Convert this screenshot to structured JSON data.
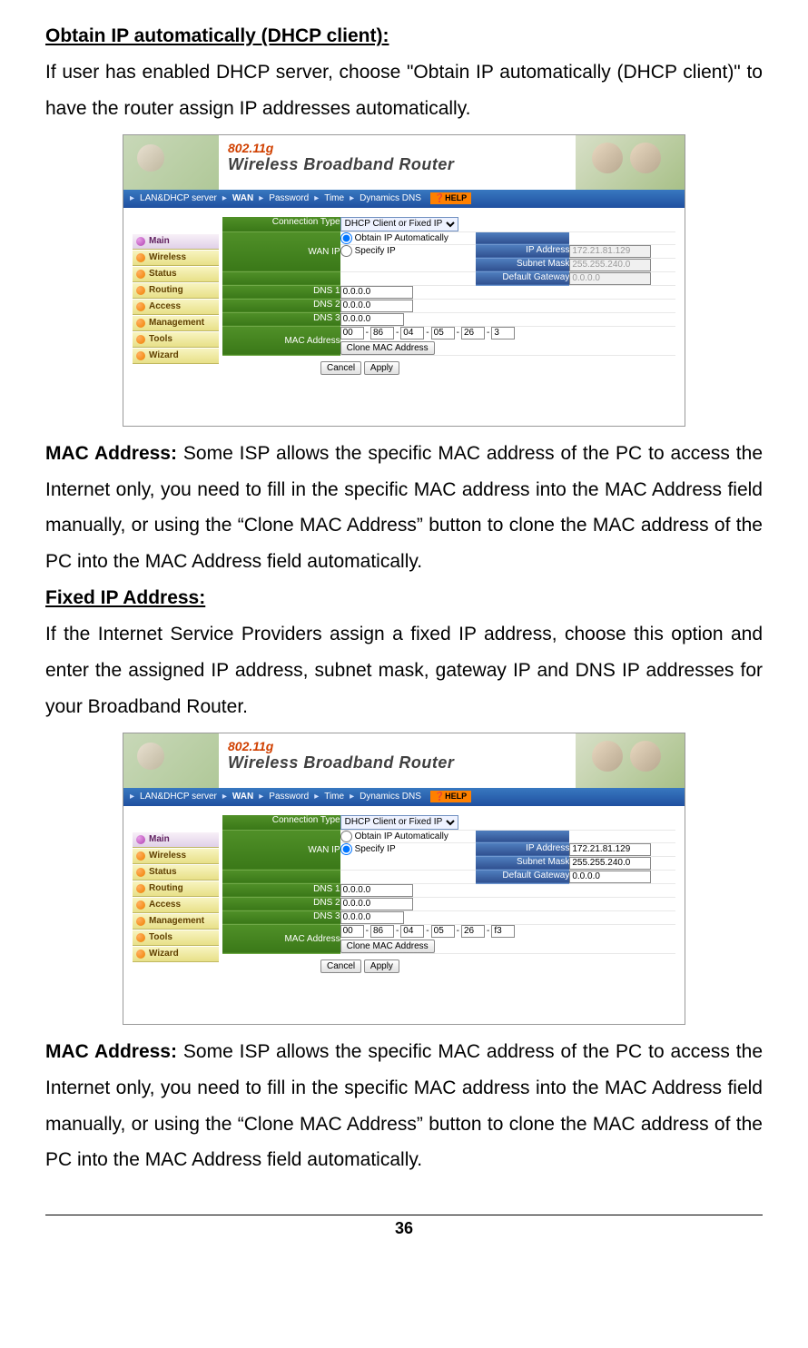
{
  "headings": {
    "obtain_ip": "Obtain IP automatically (DHCP client):",
    "fixed_ip": "Fixed IP Address:"
  },
  "paragraphs": {
    "obtain_ip_desc": "If user has enabled DHCP server, choose \"Obtain IP automatically (DHCP client)\" to have the router assign IP addresses automatically.",
    "mac_label": "MAC Address:",
    "mac_desc": " Some ISP allows the specific MAC address of the PC to access the Internet only, you need to fill in the specific MAC address into the MAC Address field manually, or using the “Clone MAC Address” button to clone the MAC address of the PC into the MAC Address field automatically.",
    "fixed_ip_desc": "If the Internet Service Providers assign a fixed IP address, choose this option and enter the assigned IP address, subnet mask, gateway IP and DNS IP addresses for your Broadband Router."
  },
  "banner": {
    "proto": "802.11g",
    "title": "Wireless Broadband Router"
  },
  "topnav": {
    "items": [
      "LAN&DHCP server",
      "WAN",
      "Password",
      "Time",
      "Dynamics DNS"
    ],
    "help": "HELP"
  },
  "sidebar": {
    "items": [
      "Main",
      "Wireless",
      "Status",
      "Routing",
      "Access",
      "Management",
      "Tools",
      "Wizard"
    ]
  },
  "form": {
    "conn_type_label": "Connection Type",
    "conn_type_value": "DHCP Client or Fixed IP",
    "wan_ip_label": "WAN IP",
    "obtain_auto": "Obtain IP Automatically",
    "specify_ip": "Specify IP",
    "ip_address_label": "IP Address",
    "subnet_mask_label": "Subnet Mask",
    "default_gw_label": "Default Gateway",
    "dns1_label": "DNS 1",
    "dns2_label": "DNS 2",
    "dns3_label": "DNS 3",
    "mac_label": "MAC Address",
    "clone_btn": "Clone MAC Address",
    "cancel_btn": "Cancel",
    "apply_btn": "Apply"
  },
  "screenshot1": {
    "radio_selected": "obtain",
    "ip_address": "172.21.81.129",
    "subnet_mask": "255.255.240.0",
    "default_gateway": "0.0.0.0",
    "dns1": "0.0.0.0",
    "dns2": "0.0.0.0",
    "dns3": "0.0.0.0",
    "mac": [
      "00",
      "86",
      "04",
      "05",
      "26",
      "3"
    ],
    "fields_disabled": true
  },
  "screenshot2": {
    "radio_selected": "specify",
    "ip_address": "172.21.81.129",
    "subnet_mask": "255.255.240.0",
    "default_gateway": "0.0.0.0",
    "dns1": "0.0.0.0",
    "dns2": "0.0.0.0",
    "dns3": "0.0.0.0",
    "mac": [
      "00",
      "86",
      "04",
      "05",
      "26",
      "f3"
    ],
    "fields_disabled": false
  },
  "page_number": "36"
}
